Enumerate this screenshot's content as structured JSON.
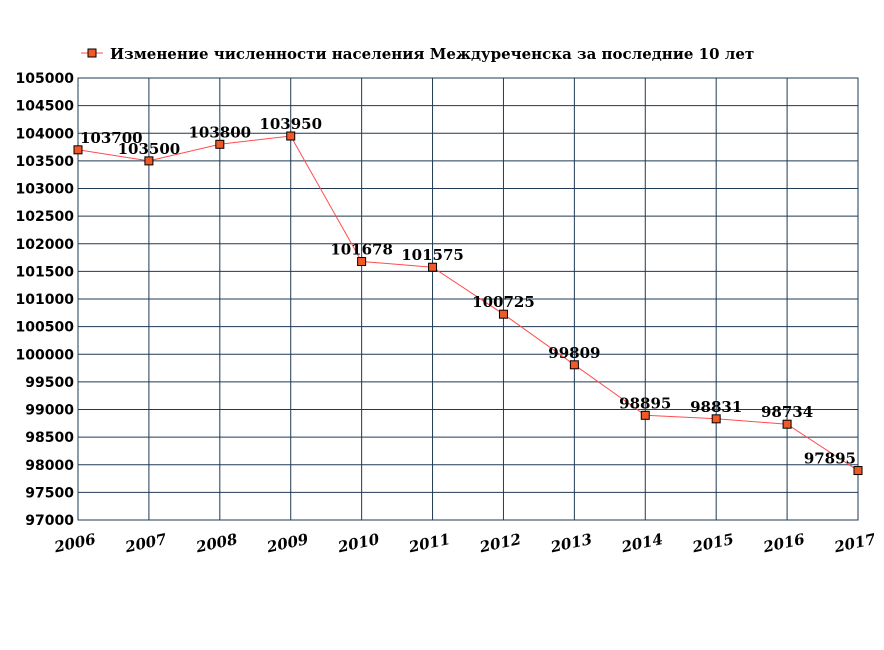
{
  "chart_data": {
    "type": "line",
    "legend_position": "top-left",
    "grid": true,
    "x": [
      "2006",
      "2007",
      "2008",
      "2009",
      "2010",
      "2011",
      "2012",
      "2013",
      "2014",
      "2015",
      "2016",
      "2017"
    ],
    "ylim": [
      97000,
      105000
    ],
    "ytick_step": 500,
    "series": [
      {
        "name": "Изменение численности населения Междуреченска за последние 10 лет",
        "values": [
          103700,
          103500,
          103800,
          103950,
          101678,
          101575,
          100725,
          99809,
          98895,
          98831,
          98734,
          97895
        ],
        "line_color": "#ff4d4d",
        "marker_color": "#f05a28",
        "marker_border": "#000000"
      }
    ],
    "grid_color": "#1f3a55"
  }
}
